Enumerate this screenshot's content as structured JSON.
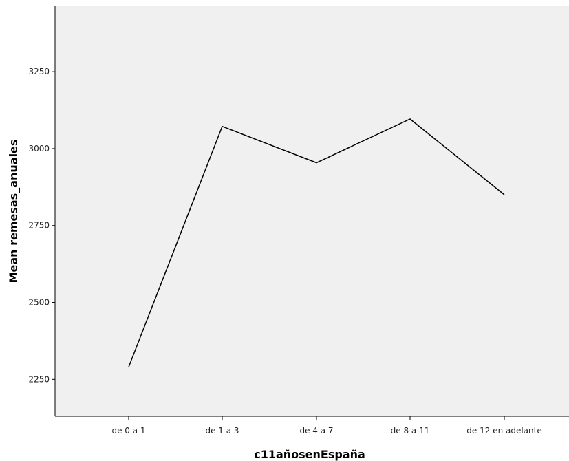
{
  "chart_data": {
    "type": "line",
    "title": "",
    "xlabel": "c11añosenEspaña",
    "ylabel": "Mean remesas_anuales",
    "categories": [
      "de 0 a 1",
      "de 1 a 3",
      "de 4 a 7",
      "de 8 a 11",
      "de 12 en adelante"
    ],
    "series": [
      {
        "values": [
          2290,
          3072,
          2954,
          3096,
          2850
        ]
      }
    ],
    "ylim": [
      2130,
      3465
    ],
    "yticks": [
      2250,
      2500,
      2750,
      3000,
      3250
    ],
    "grid": false,
    "legend": "none",
    "colors": {
      "plot_background": "#f0f0f0",
      "line": "#000000",
      "axis": "#000000",
      "page_background": "#ffffff"
    }
  }
}
